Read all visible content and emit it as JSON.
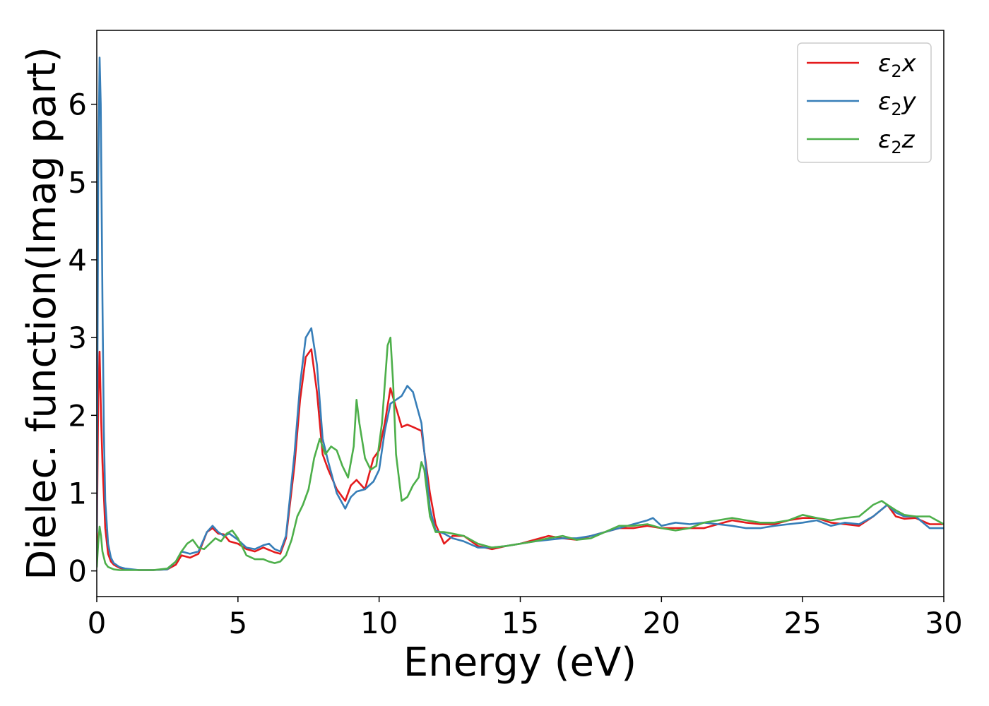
{
  "chart_data": {
    "type": "line",
    "xlabel": "Energy (eV)",
    "ylabel": "Dielec. function(Imag part)",
    "xlim": [
      0,
      30
    ],
    "ylim": [
      -0.33,
      6.95
    ],
    "xticks": [
      "0",
      "5",
      "10",
      "15",
      "20",
      "25",
      "30"
    ],
    "yticks": [
      "0",
      "1",
      "2",
      "3",
      "4",
      "5",
      "6"
    ],
    "grid": false,
    "legend_position": "top-right",
    "series": [
      {
        "name": "ε₂x",
        "legend_base": "ε",
        "legend_sub": "2",
        "legend_suffix": "x",
        "color": "#e41a1c",
        "x": [
          0,
          0.05,
          0.1,
          0.15,
          0.2,
          0.3,
          0.4,
          0.5,
          0.6,
          0.8,
          1.0,
          1.5,
          2.0,
          2.5,
          2.8,
          3.0,
          3.3,
          3.6,
          3.9,
          4.1,
          4.3,
          4.5,
          4.7,
          5.0,
          5.3,
          5.6,
          5.9,
          6.1,
          6.3,
          6.5,
          6.7,
          7.0,
          7.2,
          7.4,
          7.6,
          7.8,
          8.0,
          8.2,
          8.5,
          8.8,
          9.0,
          9.2,
          9.5,
          9.8,
          10.0,
          10.2,
          10.4,
          10.6,
          10.8,
          11.0,
          11.2,
          11.5,
          11.8,
          12.0,
          12.3,
          12.6,
          13.0,
          13.5,
          14.0,
          14.5,
          15.0,
          15.5,
          16.0,
          16.5,
          17.0,
          17.5,
          18.0,
          18.5,
          19.0,
          19.5,
          20.0,
          20.5,
          21.0,
          21.5,
          22.0,
          22.5,
          23.0,
          23.5,
          24.0,
          24.5,
          25.0,
          25.5,
          26.0,
          26.5,
          27.0,
          27.5,
          28.0,
          28.3,
          28.6,
          29.0,
          29.5,
          30.0
        ],
        "y": [
          0.3,
          2.2,
          2.82,
          2.0,
          1.4,
          0.55,
          0.22,
          0.12,
          0.08,
          0.04,
          0.02,
          0.01,
          0.01,
          0.02,
          0.08,
          0.2,
          0.17,
          0.22,
          0.5,
          0.55,
          0.48,
          0.47,
          0.38,
          0.35,
          0.28,
          0.25,
          0.3,
          0.27,
          0.24,
          0.22,
          0.42,
          1.35,
          2.2,
          2.75,
          2.85,
          2.3,
          1.5,
          1.3,
          1.05,
          0.9,
          1.1,
          1.17,
          1.05,
          1.45,
          1.55,
          1.9,
          2.35,
          2.1,
          1.85,
          1.88,
          1.85,
          1.8,
          1.0,
          0.6,
          0.35,
          0.45,
          0.45,
          0.32,
          0.28,
          0.32,
          0.35,
          0.4,
          0.45,
          0.42,
          0.4,
          0.45,
          0.5,
          0.55,
          0.55,
          0.58,
          0.55,
          0.55,
          0.55,
          0.55,
          0.6,
          0.65,
          0.62,
          0.6,
          0.6,
          0.65,
          0.68,
          0.68,
          0.62,
          0.6,
          0.58,
          0.7,
          0.85,
          0.7,
          0.67,
          0.68,
          0.6,
          0.6
        ]
      },
      {
        "name": "ε₂y",
        "legend_base": "ε",
        "legend_sub": "2",
        "legend_suffix": "y",
        "color": "#377eb8",
        "x": [
          0,
          0.05,
          0.1,
          0.14,
          0.2,
          0.25,
          0.3,
          0.4,
          0.5,
          0.6,
          0.8,
          1.0,
          1.5,
          2.0,
          2.5,
          2.8,
          3.0,
          3.3,
          3.6,
          3.9,
          4.1,
          4.3,
          4.5,
          4.7,
          5.0,
          5.3,
          5.6,
          5.9,
          6.1,
          6.3,
          6.5,
          6.7,
          7.0,
          7.2,
          7.4,
          7.6,
          7.8,
          8.0,
          8.2,
          8.5,
          8.8,
          9.0,
          9.2,
          9.5,
          9.8,
          10.0,
          10.2,
          10.4,
          10.6,
          10.8,
          11.0,
          11.2,
          11.5,
          11.8,
          12.0,
          12.3,
          12.6,
          13.0,
          13.5,
          14.0,
          14.5,
          15.0,
          15.5,
          16.0,
          16.5,
          17.0,
          17.5,
          18.0,
          18.5,
          19.0,
          19.5,
          19.7,
          20.0,
          20.5,
          21.0,
          21.5,
          22.0,
          22.5,
          23.0,
          23.5,
          24.0,
          24.5,
          25.0,
          25.5,
          26.0,
          26.5,
          27.0,
          27.5,
          28.0,
          28.3,
          28.6,
          29.0,
          29.5,
          30.0
        ],
        "y": [
          0.5,
          5.0,
          6.6,
          6.0,
          3.5,
          1.8,
          0.9,
          0.35,
          0.17,
          0.1,
          0.05,
          0.03,
          0.01,
          0.01,
          0.02,
          0.12,
          0.25,
          0.22,
          0.25,
          0.5,
          0.58,
          0.5,
          0.45,
          0.48,
          0.4,
          0.3,
          0.28,
          0.33,
          0.35,
          0.28,
          0.25,
          0.45,
          1.5,
          2.4,
          3.0,
          3.12,
          2.65,
          1.7,
          1.4,
          1.0,
          0.8,
          0.95,
          1.02,
          1.05,
          1.15,
          1.3,
          1.8,
          2.15,
          2.2,
          2.25,
          2.38,
          2.3,
          1.9,
          0.8,
          0.52,
          0.48,
          0.42,
          0.38,
          0.3,
          0.3,
          0.32,
          0.35,
          0.38,
          0.4,
          0.42,
          0.42,
          0.45,
          0.5,
          0.55,
          0.6,
          0.65,
          0.68,
          0.58,
          0.62,
          0.6,
          0.62,
          0.6,
          0.58,
          0.55,
          0.55,
          0.58,
          0.6,
          0.62,
          0.65,
          0.58,
          0.62,
          0.6,
          0.7,
          0.85,
          0.75,
          0.7,
          0.7,
          0.55,
          0.55
        ]
      },
      {
        "name": "ε₂z",
        "legend_base": "ε",
        "legend_sub": "2",
        "legend_suffix": "z",
        "color": "#4daf4a",
        "x": [
          0,
          0.05,
          0.1,
          0.15,
          0.2,
          0.3,
          0.4,
          0.6,
          0.8,
          1.0,
          1.5,
          2.0,
          2.5,
          2.8,
          3.0,
          3.2,
          3.4,
          3.6,
          3.8,
          4.0,
          4.2,
          4.4,
          4.6,
          4.8,
          5.0,
          5.3,
          5.6,
          5.9,
          6.1,
          6.3,
          6.5,
          6.7,
          6.9,
          7.1,
          7.3,
          7.5,
          7.7,
          7.9,
          8.1,
          8.3,
          8.5,
          8.7,
          8.9,
          9.1,
          9.2,
          9.3,
          9.5,
          9.7,
          9.9,
          10.1,
          10.3,
          10.4,
          10.5,
          10.6,
          10.8,
          11.0,
          11.2,
          11.4,
          11.5,
          11.6,
          11.8,
          12.0,
          12.3,
          12.6,
          13.0,
          13.5,
          14.0,
          14.5,
          15.0,
          15.5,
          16.0,
          16.5,
          17.0,
          17.5,
          18.0,
          18.5,
          19.0,
          19.5,
          20.0,
          20.5,
          21.0,
          21.5,
          22.0,
          22.5,
          23.0,
          23.5,
          24.0,
          24.5,
          25.0,
          25.5,
          26.0,
          26.5,
          27.0,
          27.5,
          27.8,
          28.0,
          28.3,
          28.6,
          29.0,
          29.5,
          30.0
        ],
        "y": [
          0.05,
          0.35,
          0.57,
          0.45,
          0.25,
          0.1,
          0.05,
          0.02,
          0.01,
          0.01,
          0.01,
          0.01,
          0.03,
          0.12,
          0.25,
          0.35,
          0.4,
          0.3,
          0.28,
          0.35,
          0.42,
          0.38,
          0.48,
          0.52,
          0.42,
          0.2,
          0.15,
          0.15,
          0.12,
          0.1,
          0.12,
          0.2,
          0.4,
          0.7,
          0.85,
          1.05,
          1.45,
          1.7,
          1.5,
          1.6,
          1.55,
          1.35,
          1.2,
          1.6,
          2.2,
          1.9,
          1.45,
          1.3,
          1.35,
          1.9,
          2.9,
          3.0,
          2.4,
          1.5,
          0.9,
          0.95,
          1.1,
          1.2,
          1.4,
          1.3,
          0.7,
          0.5,
          0.5,
          0.48,
          0.45,
          0.35,
          0.3,
          0.32,
          0.35,
          0.38,
          0.42,
          0.45,
          0.4,
          0.42,
          0.5,
          0.58,
          0.58,
          0.6,
          0.55,
          0.52,
          0.55,
          0.62,
          0.65,
          0.68,
          0.65,
          0.62,
          0.62,
          0.65,
          0.72,
          0.68,
          0.65,
          0.68,
          0.7,
          0.85,
          0.9,
          0.85,
          0.78,
          0.72,
          0.7,
          0.7,
          0.6
        ]
      }
    ]
  }
}
